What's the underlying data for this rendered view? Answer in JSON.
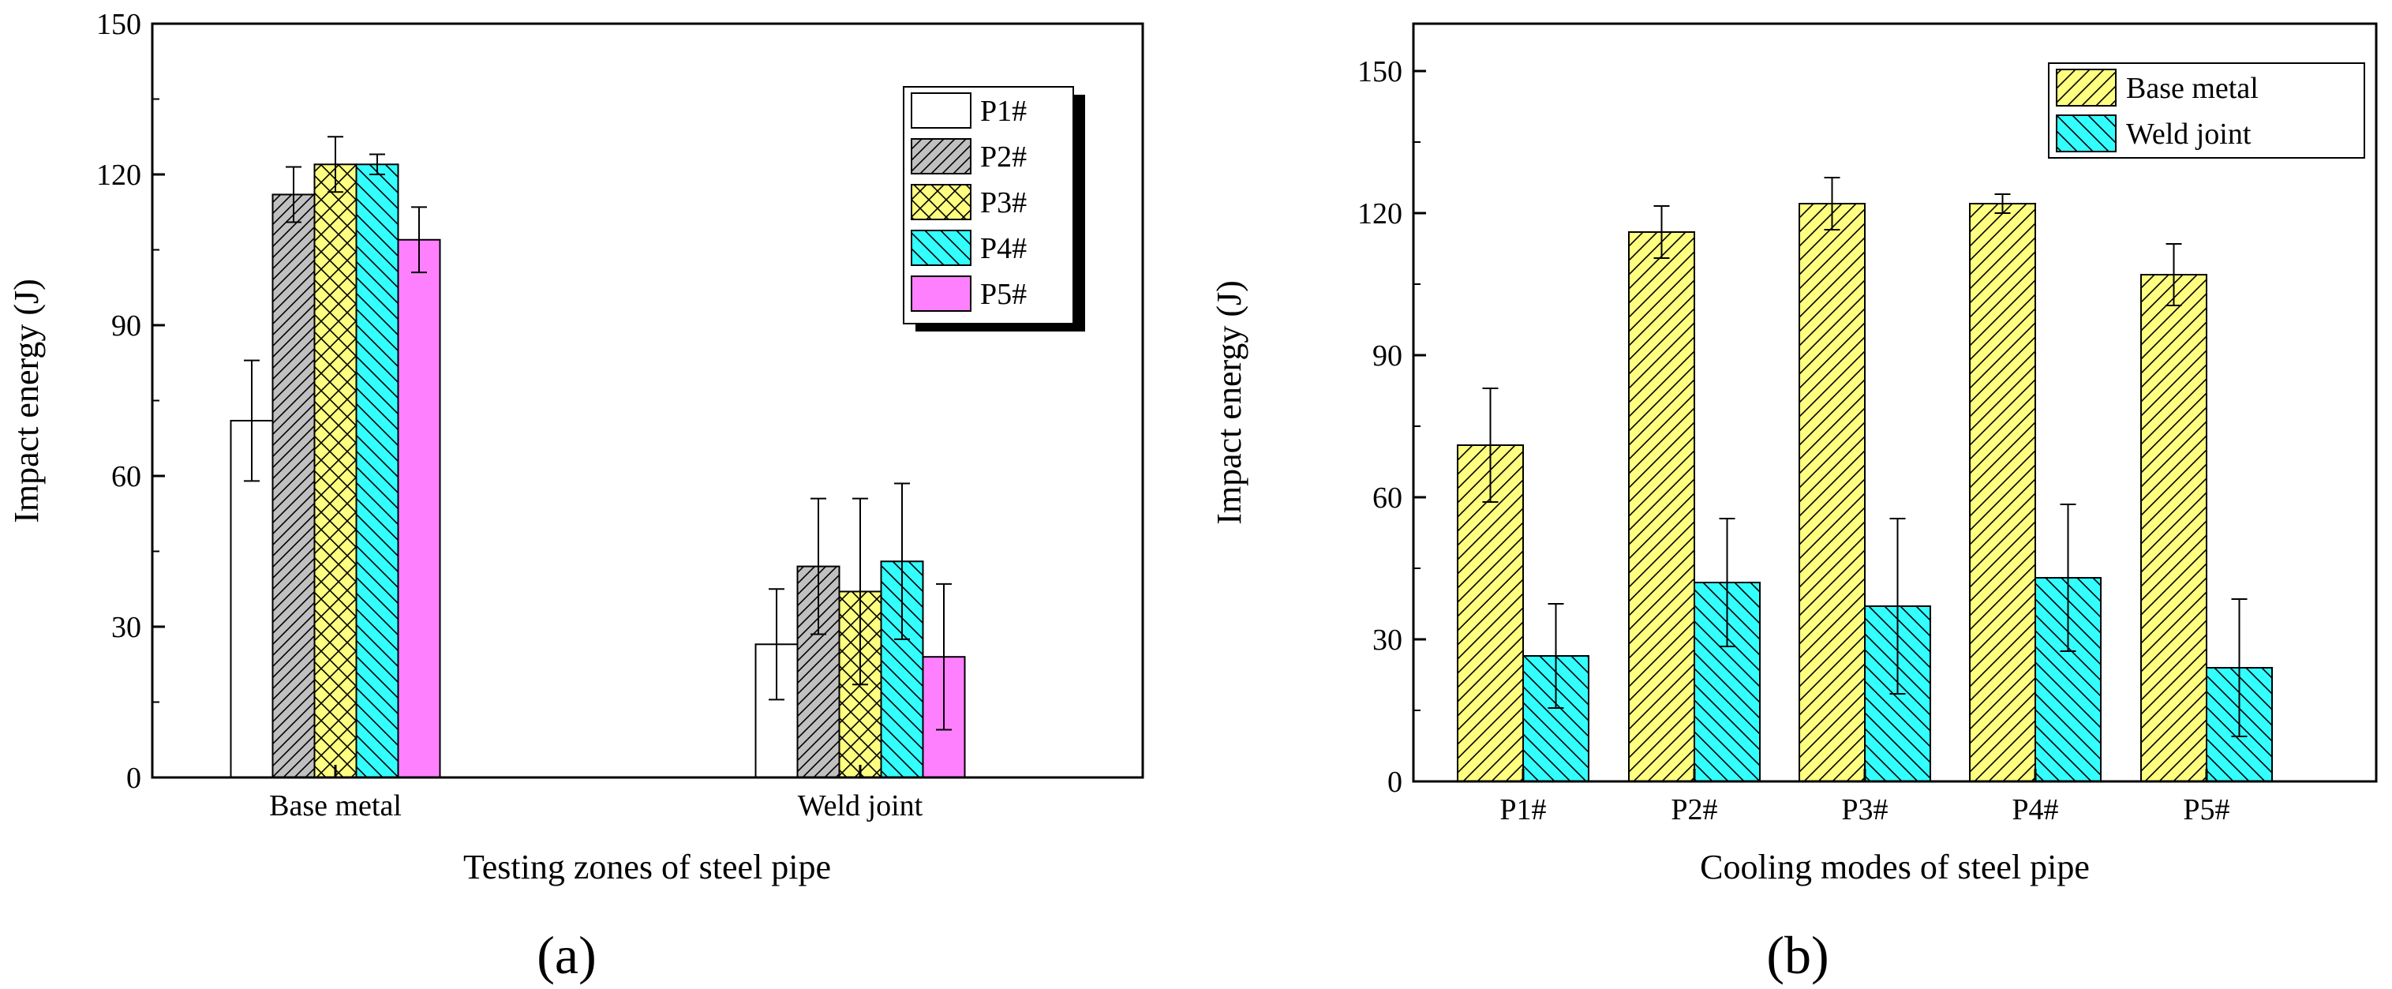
{
  "chart_data": [
    {
      "id": "a",
      "type": "bar",
      "panel_label": "(a)",
      "xlabel": "Testing zones of steel pipe",
      "ylabel": "Impact energy (J)",
      "ylim": [
        0,
        150
      ],
      "yticks": [
        "0",
        "30",
        "60",
        "90",
        "120",
        "150"
      ],
      "categories": [
        "Base metal",
        "Weld joint"
      ],
      "legend_position": "top-right",
      "series": [
        {
          "name": "P1#",
          "key": "p1",
          "color": "#ffffff",
          "values": [
            71,
            26.5
          ],
          "errors": [
            12,
            11
          ]
        },
        {
          "name": "P2#",
          "key": "p2",
          "color": "#c0c0c0",
          "values": [
            116,
            42
          ],
          "errors": [
            5.5,
            13.5
          ]
        },
        {
          "name": "P3#",
          "key": "p3",
          "color": "#ffff80",
          "values": [
            122,
            37
          ],
          "errors": [
            5.5,
            18.5
          ]
        },
        {
          "name": "P4#",
          "key": "p4",
          "color": "#33ffff",
          "values": [
            122,
            43
          ],
          "errors": [
            2,
            15.5
          ]
        },
        {
          "name": "P5#",
          "key": "p5",
          "color": "#ff80ff",
          "values": [
            107,
            24
          ],
          "errors": [
            6.5,
            14.5
          ]
        }
      ]
    },
    {
      "id": "b",
      "type": "bar",
      "panel_label": "(b)",
      "xlabel": "Cooling modes of steel pipe",
      "ylabel": "Impact energy (J)",
      "ylim": [
        0,
        160
      ],
      "yticks": [
        "0",
        "30",
        "60",
        "90",
        "120",
        "150"
      ],
      "categories": [
        "P1#",
        "P2#",
        "P3#",
        "P4#",
        "P5#"
      ],
      "legend_position": "top-right",
      "series": [
        {
          "name": "Base metal",
          "key": "base",
          "color": "#ffff80",
          "values": [
            71,
            116,
            122,
            122,
            107
          ],
          "errors": [
            12,
            5.5,
            5.5,
            2,
            6.5
          ]
        },
        {
          "name": "Weld joint",
          "key": "weld",
          "color": "#33ffff",
          "values": [
            26.5,
            42,
            37,
            43,
            24
          ],
          "errors": [
            11,
            13.5,
            18.5,
            15.5,
            14.5
          ]
        }
      ]
    }
  ]
}
